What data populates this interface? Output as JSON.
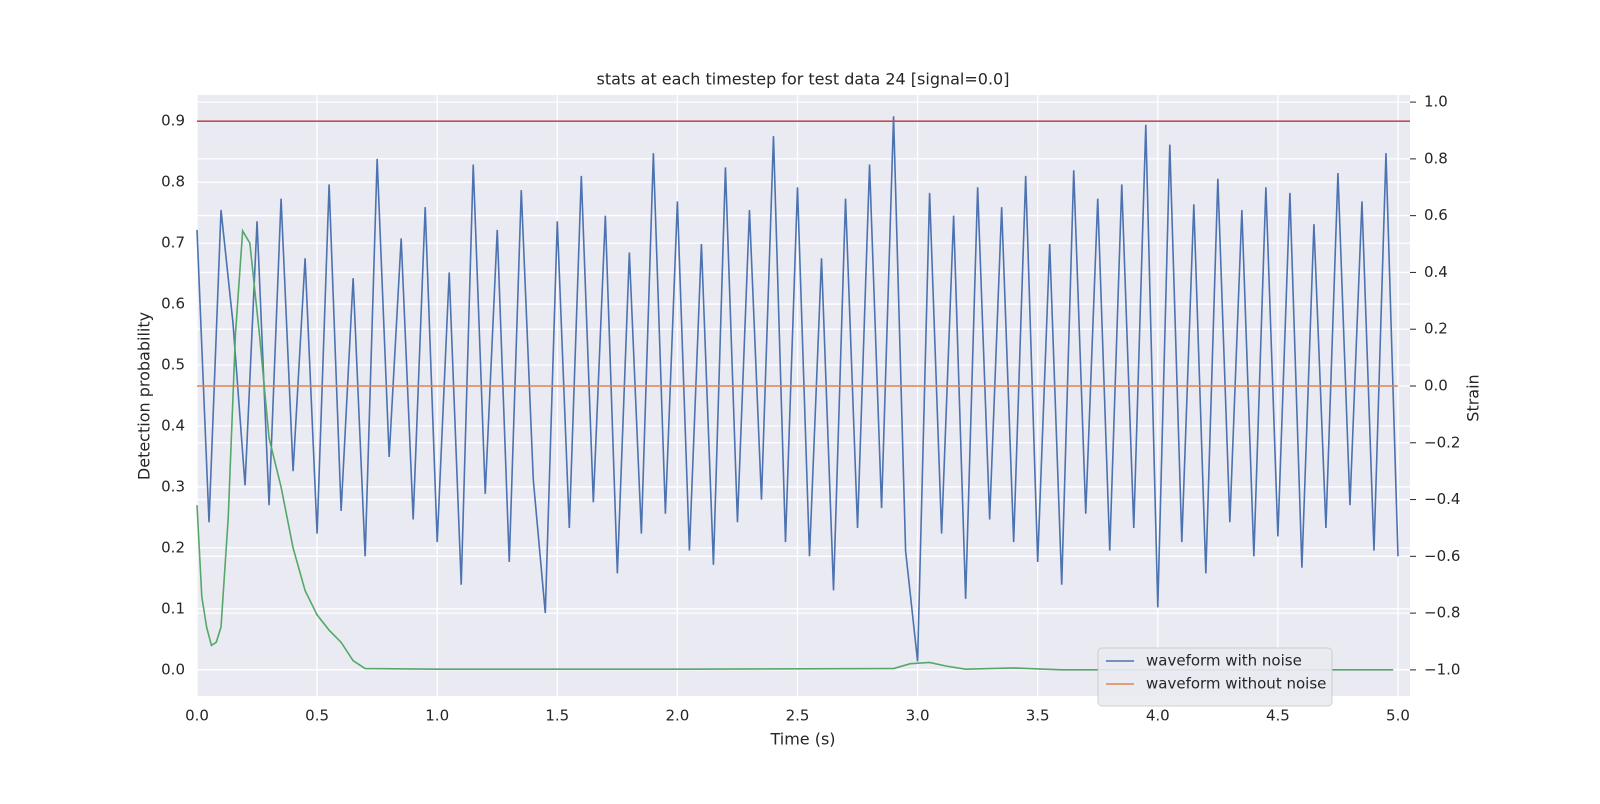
{
  "chart_data": {
    "type": "line",
    "title": "stats at each timestep for test data 24 [signal=0.0]",
    "x_label": "Time (s)",
    "y_label": "Detection probability",
    "y2_label": "Strain",
    "xlim": [
      0,
      5.05
    ],
    "ylim": [
      -0.043,
      0.943
    ],
    "y2lim": [
      -1.092,
      1.025
    ],
    "xticks": [
      {
        "value": 0,
        "label": "0.0"
      },
      0.5,
      {
        "value": 1,
        "label": "1.0"
      },
      1.5,
      {
        "value": 2,
        "label": "2.0"
      },
      2.5,
      {
        "value": 3,
        "label": "3.0"
      },
      3.5,
      {
        "value": 4,
        "label": "4.0"
      },
      4.5,
      {
        "value": 5,
        "label": "5.0"
      }
    ],
    "yticks": [
      {
        "value": 0,
        "label": "0.0"
      },
      0.1,
      0.2,
      0.3,
      0.4,
      0.5,
      0.6,
      0.7,
      0.8,
      0.9
    ],
    "y2ticks": [
      {
        "value": -1,
        "label": "−1.0"
      },
      {
        "value": -0.8,
        "label": "−0.8"
      },
      {
        "value": -0.6,
        "label": "−0.6"
      },
      {
        "value": -0.4,
        "label": "−0.4"
      },
      {
        "value": -0.2,
        "label": "−0.2"
      },
      {
        "value": 0,
        "label": "0.0"
      },
      0.2,
      0.4,
      0.6,
      0.8,
      {
        "value": 1,
        "label": "1.0"
      }
    ],
    "grid": true,
    "legend": "lower right",
    "hline": {
      "value": 0.9,
      "color": "#c44e52"
    },
    "series": [
      {
        "name": "waveform with noise",
        "color": "#4c72b0",
        "axis": "y2",
        "x": [
          0,
          0.05,
          0.1,
          0.15,
          0.2,
          0.25,
          0.3,
          0.35,
          0.4,
          0.45,
          0.5,
          0.55,
          0.6,
          0.65,
          0.7,
          0.75,
          0.8,
          0.85,
          0.9,
          0.95,
          1,
          1.05,
          1.1,
          1.15,
          1.2,
          1.25,
          1.3,
          1.35,
          1.4,
          1.45,
          1.5,
          1.55,
          1.6,
          1.65,
          1.7,
          1.75,
          1.8,
          1.85,
          1.9,
          1.95,
          2,
          2.05,
          2.1,
          2.15,
          2.2,
          2.25,
          2.3,
          2.35,
          2.4,
          2.45,
          2.5,
          2.55,
          2.6,
          2.65,
          2.7,
          2.75,
          2.8,
          2.85,
          2.9,
          2.95,
          3,
          3.05,
          3.1,
          3.15,
          3.2,
          3.25,
          3.3,
          3.35,
          3.4,
          3.45,
          3.5,
          3.55,
          3.6,
          3.65,
          3.7,
          3.75,
          3.8,
          3.85,
          3.9,
          3.95,
          4,
          4.05,
          4.1,
          4.15,
          4.2,
          4.25,
          4.3,
          4.35,
          4.4,
          4.45,
          4.5,
          4.55,
          4.6,
          4.65,
          4.7,
          4.75,
          4.8,
          4.85,
          4.9,
          4.95,
          5
        ],
        "values": [
          0.55,
          -0.48,
          0.62,
          0.22,
          -0.35,
          0.58,
          -0.42,
          0.66,
          -0.3,
          0.45,
          -0.52,
          0.71,
          -0.44,
          0.38,
          -0.6,
          0.8,
          -0.25,
          0.52,
          -0.47,
          0.63,
          -0.55,
          0.4,
          -0.7,
          0.78,
          -0.38,
          0.55,
          -0.62,
          0.69,
          -0.33,
          -0.8,
          0.58,
          -0.5,
          0.74,
          -0.41,
          0.6,
          -0.66,
          0.47,
          -0.52,
          0.82,
          -0.45,
          0.65,
          -0.58,
          0.5,
          -0.63,
          0.77,
          -0.48,
          0.62,
          -0.4,
          0.88,
          -0.55,
          0.7,
          -0.6,
          0.45,
          -0.72,
          0.66,
          -0.5,
          0.78,
          -0.43,
          0.95,
          -0.58,
          -0.97,
          0.68,
          -0.52,
          0.6,
          -0.75,
          0.7,
          -0.47,
          0.63,
          -0.55,
          0.74,
          -0.62,
          0.5,
          -0.7,
          0.76,
          -0.45,
          0.66,
          -0.58,
          0.71,
          -0.5,
          0.92,
          -0.78,
          0.85,
          -0.55,
          0.64,
          -0.66,
          0.73,
          -0.48,
          0.62,
          -0.6,
          0.7,
          -0.53,
          0.68,
          -0.64,
          0.57,
          -0.5,
          0.75,
          -0.42,
          0.65,
          -0.58,
          0.82,
          -0.6
        ]
      },
      {
        "name": "waveform without noise",
        "color": "#dd8452",
        "axis": "y2",
        "x": [
          0,
          5.0
        ],
        "values": [
          0,
          0
        ]
      },
      {
        "color": "#55a868",
        "x": [
          0,
          0.02,
          0.04,
          0.06,
          0.08,
          0.1,
          0.13,
          0.16,
          0.19,
          0.22,
          0.26,
          0.3,
          0.35,
          0.4,
          0.45,
          0.5,
          0.55,
          0.6,
          0.65,
          0.7,
          1.0,
          2.0,
          2.9,
          2.97,
          3.05,
          3.12,
          3.2,
          3.4,
          3.6,
          4.98
        ],
        "values": [
          0.27,
          0.12,
          0.07,
          0.04,
          0.045,
          0.07,
          0.25,
          0.55,
          0.72,
          0.7,
          0.55,
          0.38,
          0.3,
          0.2,
          0.13,
          0.09,
          0.065,
          0.045,
          0.015,
          0.002,
          0.001,
          0.001,
          0.002,
          0.01,
          0.012,
          0.006,
          0.001,
          0.003,
          0.0,
          0.0
        ]
      }
    ]
  }
}
